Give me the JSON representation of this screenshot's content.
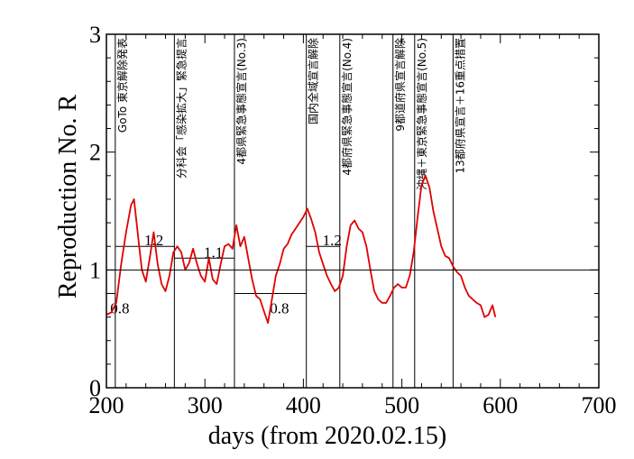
{
  "chart_data": {
    "type": "line",
    "xlabel": "days   (from 2020.02.15)",
    "ylabel": "Reproduction No.  R",
    "xlim": [
      200,
      700
    ],
    "ylim": [
      0,
      3
    ],
    "xticks": [
      200,
      300,
      400,
      500,
      600,
      700
    ],
    "yticks": [
      0,
      1,
      2,
      3
    ],
    "reference_line": 1,
    "series": [
      {
        "color": "#e00000",
        "x": [
          200,
          205,
          210,
          215,
          220,
          225,
          228,
          232,
          236,
          240,
          244,
          248,
          252,
          256,
          260,
          264,
          268,
          272,
          276,
          280,
          284,
          288,
          292,
          296,
          300,
          304,
          308,
          312,
          316,
          320,
          324,
          328,
          332,
          336,
          340,
          344,
          348,
          352,
          356,
          360,
          364,
          368,
          372,
          376,
          380,
          384,
          388,
          392,
          396,
          400,
          404,
          408,
          412,
          416,
          420,
          424,
          428,
          432,
          436,
          440,
          444,
          448,
          452,
          456,
          460,
          464,
          468,
          472,
          476,
          480,
          484,
          488,
          492,
          496,
          500,
          504,
          508,
          512,
          516,
          520,
          524,
          528,
          532,
          536,
          540,
          544,
          548,
          552,
          556,
          560,
          564,
          568,
          572,
          576,
          580,
          584,
          588,
          592,
          595
        ],
        "y": [
          0.62,
          0.64,
          0.72,
          1.05,
          1.32,
          1.55,
          1.6,
          1.3,
          1.0,
          0.9,
          1.1,
          1.32,
          1.05,
          0.88,
          0.82,
          0.95,
          1.15,
          1.2,
          1.15,
          1.0,
          1.06,
          1.18,
          1.05,
          0.95,
          0.9,
          1.1,
          0.92,
          0.88,
          1.05,
          1.2,
          1.22,
          1.18,
          1.38,
          1.2,
          1.28,
          1.1,
          0.92,
          0.78,
          0.75,
          0.65,
          0.55,
          0.75,
          0.95,
          1.05,
          1.18,
          1.22,
          1.3,
          1.35,
          1.4,
          1.45,
          1.52,
          1.43,
          1.32,
          1.15,
          1.05,
          0.95,
          0.88,
          0.82,
          0.85,
          0.95,
          1.2,
          1.38,
          1.42,
          1.35,
          1.32,
          1.2,
          1.0,
          0.82,
          0.75,
          0.72,
          0.72,
          0.78,
          0.85,
          0.88,
          0.85,
          0.85,
          0.95,
          1.15,
          1.45,
          1.72,
          1.8,
          1.7,
          1.5,
          1.35,
          1.2,
          1.12,
          1.1,
          1.03,
          0.98,
          0.95,
          0.85,
          0.78,
          0.75,
          0.72,
          0.7,
          0.6,
          0.62,
          0.7,
          0.6
        ]
      }
    ],
    "events": [
      {
        "x": 209,
        "label": "GoTo 東京解除発表"
      },
      {
        "x": 269,
        "label": "分科会「感染拡大」緊急提言"
      },
      {
        "x": 330,
        "label": "4都県緊急事態宣言(No.3)"
      },
      {
        "x": 403,
        "label": "国内全域宣言解除"
      },
      {
        "x": 437,
        "label": "4都府県緊急事態宣言(No.4)"
      },
      {
        "x": 491,
        "label": "9都道府県宣言解除"
      },
      {
        "x": 513,
        "label": "沖縄＋東京緊急事態宣言(No.5)"
      },
      {
        "x": 552,
        "label": "13都府県宣言＋16重点措置"
      }
    ],
    "levels": [
      {
        "x1": 200,
        "x2": 209,
        "y": 0.8,
        "label": "0.8"
      },
      {
        "x1": 209,
        "x2": 269,
        "y": 1.2,
        "label": "1.2"
      },
      {
        "x1": 269,
        "x2": 330,
        "y": 1.1,
        "label": "1.1"
      },
      {
        "x1": 330,
        "x2": 403,
        "y": 0.8,
        "label": "0.8"
      },
      {
        "x1": 403,
        "x2": 437,
        "y": 1.2,
        "label": "1.2"
      }
    ]
  }
}
